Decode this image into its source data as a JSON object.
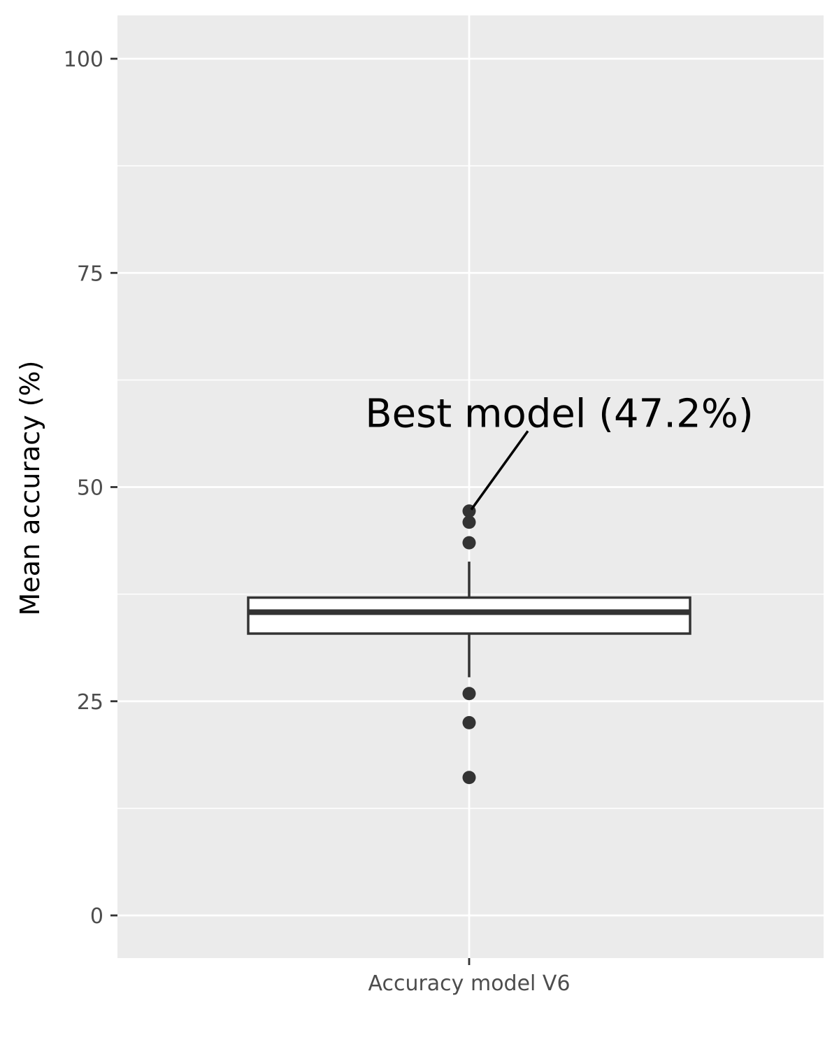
{
  "chart_data": {
    "type": "boxplot",
    "title": "",
    "xlabel": "",
    "ylabel": "Mean accuracy (%)",
    "categories": [
      "Accuracy model V6"
    ],
    "ylim": [
      -5,
      105
    ],
    "yticks": [
      0,
      25,
      50,
      75,
      100
    ],
    "ytick_labels": [
      "0",
      "25",
      "50",
      "75",
      "100"
    ],
    "grid": true,
    "legend": "none",
    "box": {
      "category": "Accuracy model V6",
      "whisker_low": 27.8,
      "q1": 32.9,
      "median": 35.4,
      "q3": 37.1,
      "whisker_high": 41.3
    },
    "outliers": [
      47.2,
      45.9,
      43.5,
      25.9,
      22.5,
      16.1
    ],
    "annotation": {
      "text": "Best model (47.2%)",
      "target_value": 47.2,
      "label_value": 58.5
    },
    "colors": {
      "panel_bg": "#ebebeb",
      "grid_major": "#ffffff",
      "box_fill": "#ffffff",
      "box_line": "#333333",
      "point": "#333333",
      "tick_text": "#4d4d4d",
      "axis_text": "#000000"
    }
  }
}
